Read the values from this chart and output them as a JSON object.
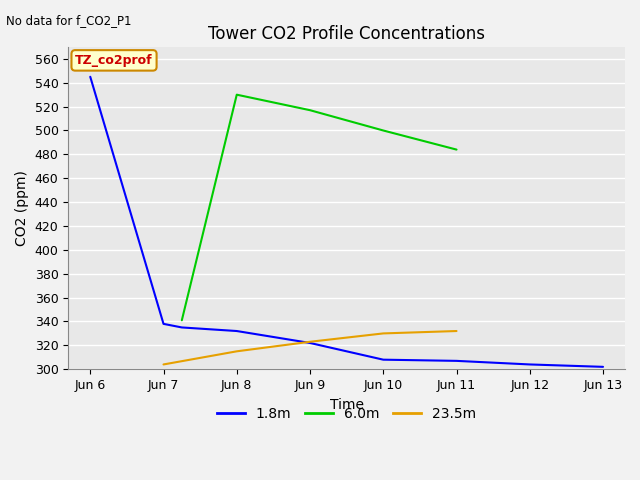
{
  "title": "Tower CO2 Profile Concentrations",
  "top_left_text": "No data for f_CO2_P1",
  "xlabel": "Time",
  "ylabel": "CO2 (ppm)",
  "ylim": [
    300,
    570
  ],
  "yticks": [
    300,
    320,
    340,
    360,
    380,
    400,
    420,
    440,
    460,
    480,
    500,
    520,
    540,
    560
  ],
  "x_labels": [
    "Jun 6",
    "Jun 7",
    "Jun 8",
    "Jun 9",
    "Jun 10",
    "Jun 11",
    "Jun 12",
    "Jun 13"
  ],
  "x_values": [
    0,
    1,
    2,
    3,
    4,
    5,
    6,
    7
  ],
  "annotation_label": "TZ_co2prof",
  "series": [
    {
      "label": "1.8m",
      "color": "#0000ff",
      "x": [
        0,
        1,
        1.25,
        2,
        3,
        4,
        5,
        6,
        7
      ],
      "y": [
        545,
        338,
        335,
        332,
        322,
        308,
        307,
        304,
        302
      ]
    },
    {
      "label": "6.0m",
      "color": "#00cc00",
      "x": [
        1.25,
        2,
        3,
        4,
        5
      ],
      "y": [
        341,
        530,
        517,
        500,
        484
      ]
    },
    {
      "label": "23.5m",
      "color": "#e6a000",
      "x": [
        1,
        2,
        3,
        4,
        5
      ],
      "y": [
        304,
        315,
        323,
        330,
        332
      ]
    }
  ],
  "plot_bg": "#e8e8e8",
  "fig_bg": "#f2f2f2",
  "grid_color": "#ffffff",
  "title_fontsize": 12,
  "tick_fontsize": 9,
  "label_fontsize": 10
}
